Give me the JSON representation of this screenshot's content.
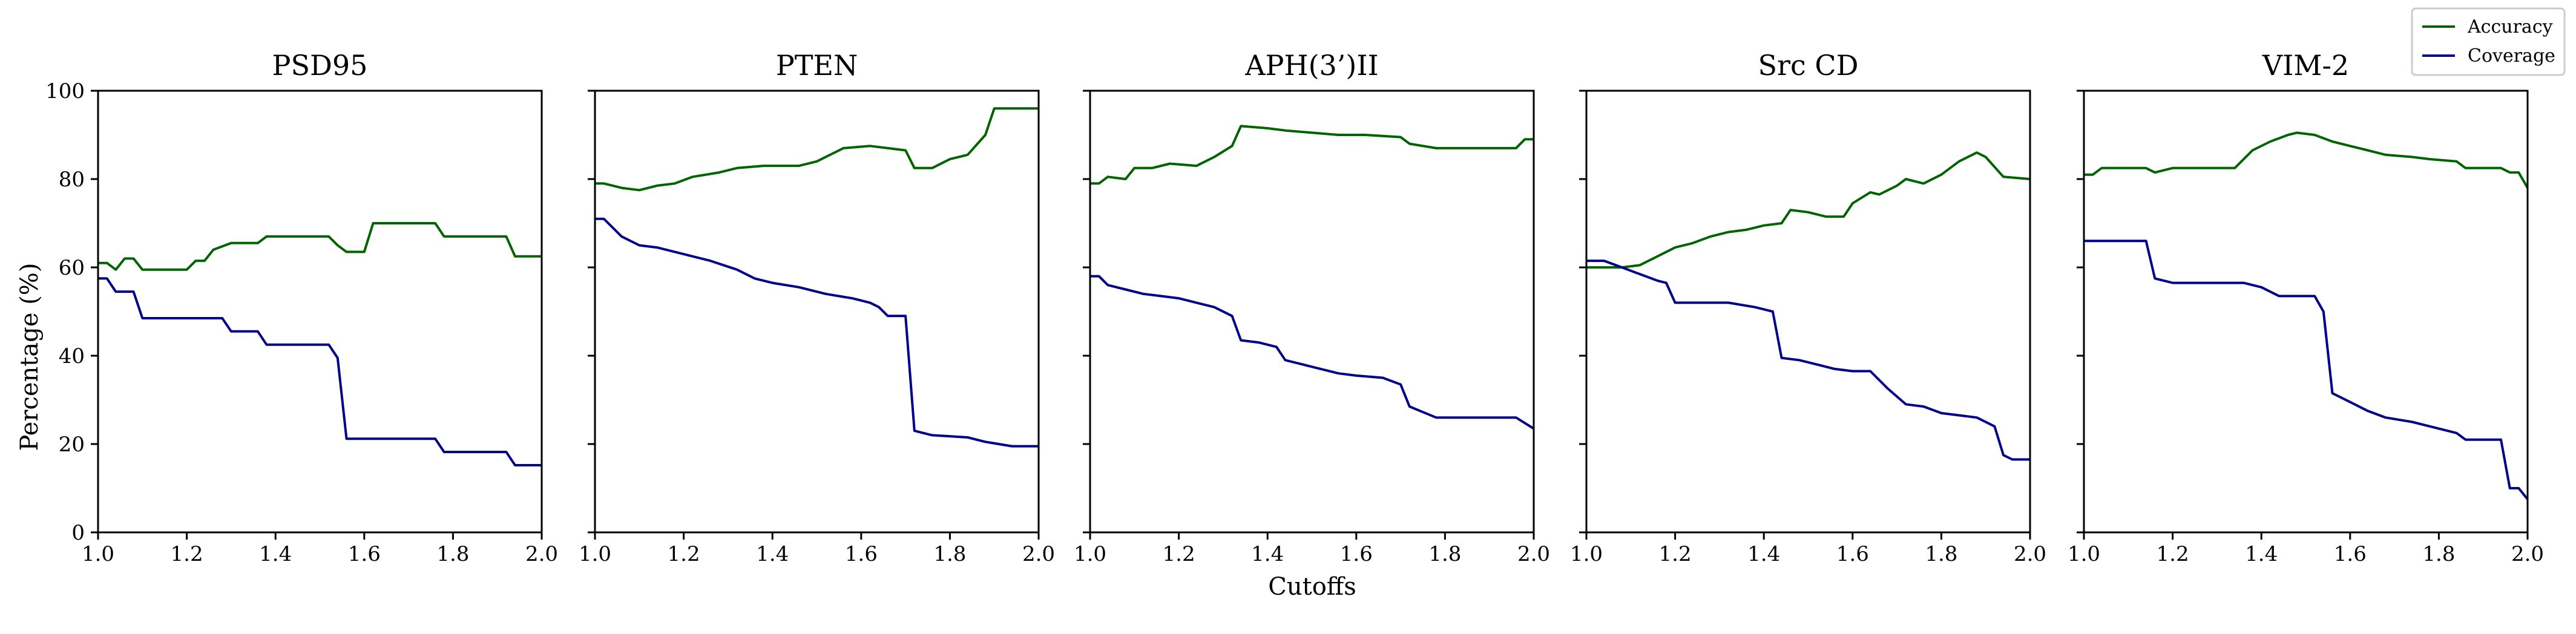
{
  "figure": {
    "ylabel": "Percentage (%)",
    "xlabel": "Cutoffs",
    "legend": {
      "placement": "top-right",
      "entries": [
        {
          "label": "Accuracy",
          "color": "#006400"
        },
        {
          "label": "Coverage",
          "color": "#00008b"
        }
      ]
    }
  },
  "chart_data": [
    {
      "type": "line",
      "title": "PSD95",
      "xlim": [
        1.0,
        2.0
      ],
      "ylim": [
        0,
        100
      ],
      "xticks": [
        "1.0",
        "1.2",
        "1.4",
        "1.6",
        "1.8",
        "2.0"
      ],
      "yticks": [
        "0",
        "20",
        "40",
        "60",
        "80",
        "100"
      ],
      "grid": false,
      "series": [
        {
          "name": "Accuracy",
          "color": "#006400",
          "x": [
            1.0,
            1.02,
            1.04,
            1.06,
            1.08,
            1.1,
            1.2,
            1.22,
            1.24,
            1.26,
            1.3,
            1.36,
            1.38,
            1.52,
            1.54,
            1.56,
            1.6,
            1.62,
            1.76,
            1.78,
            1.92,
            1.94,
            2.0
          ],
          "y": [
            61,
            61,
            59.5,
            62,
            62,
            59.5,
            59.5,
            61.5,
            61.5,
            64,
            65.5,
            65.5,
            67,
            67,
            65,
            63.5,
            63.5,
            70,
            70,
            67,
            67,
            62.5,
            62.5
          ]
        },
        {
          "name": "Coverage",
          "color": "#00008b",
          "x": [
            1.0,
            1.02,
            1.04,
            1.08,
            1.1,
            1.28,
            1.3,
            1.36,
            1.38,
            1.52,
            1.54,
            1.56,
            1.76,
            1.78,
            1.92,
            1.94,
            2.0
          ],
          "y": [
            57.5,
            57.5,
            54.5,
            54.5,
            48.5,
            48.5,
            45.5,
            45.5,
            42.5,
            42.5,
            39.5,
            21.2,
            21.2,
            18.2,
            18.2,
            15.2,
            15.2
          ]
        }
      ]
    },
    {
      "type": "line",
      "title": "PTEN",
      "xlim": [
        1.0,
        2.0
      ],
      "ylim": [
        0,
        100
      ],
      "xticks": [
        "1.0",
        "1.2",
        "1.4",
        "1.6",
        "1.8",
        "2.0"
      ],
      "yticks": [],
      "grid": false,
      "series": [
        {
          "name": "Accuracy",
          "color": "#006400",
          "x": [
            1.0,
            1.02,
            1.06,
            1.1,
            1.14,
            1.18,
            1.22,
            1.28,
            1.32,
            1.38,
            1.46,
            1.5,
            1.56,
            1.62,
            1.66,
            1.7,
            1.72,
            1.76,
            1.8,
            1.84,
            1.88,
            1.9,
            1.94,
            2.0
          ],
          "y": [
            79,
            79,
            78,
            77.5,
            78.5,
            79,
            80.5,
            81.5,
            82.5,
            83,
            83,
            84,
            87,
            87.5,
            87,
            86.5,
            82.5,
            82.5,
            84.5,
            85.5,
            90,
            96,
            96,
            96
          ]
        },
        {
          "name": "Coverage",
          "color": "#00008b",
          "x": [
            1.0,
            1.02,
            1.06,
            1.1,
            1.14,
            1.2,
            1.26,
            1.32,
            1.36,
            1.4,
            1.46,
            1.52,
            1.58,
            1.62,
            1.64,
            1.66,
            1.7,
            1.72,
            1.76,
            1.84,
            1.88,
            1.94,
            2.0
          ],
          "y": [
            71,
            71,
            67,
            65,
            64.5,
            63,
            61.5,
            59.5,
            57.5,
            56.5,
            55.5,
            54,
            53,
            52,
            51,
            49,
            49,
            23,
            22,
            21.5,
            20.5,
            19.5,
            19.5
          ]
        }
      ]
    },
    {
      "type": "line",
      "title": "APH(3’)II",
      "xlim": [
        1.0,
        2.0
      ],
      "ylim": [
        0,
        100
      ],
      "xticks": [
        "1.0",
        "1.2",
        "1.4",
        "1.6",
        "1.8",
        "2.0"
      ],
      "yticks": [],
      "grid": false,
      "series": [
        {
          "name": "Accuracy",
          "color": "#006400",
          "x": [
            1.0,
            1.02,
            1.04,
            1.08,
            1.1,
            1.14,
            1.18,
            1.24,
            1.28,
            1.32,
            1.34,
            1.4,
            1.44,
            1.5,
            1.56,
            1.62,
            1.7,
            1.72,
            1.78,
            1.84,
            1.96,
            1.98,
            2.0
          ],
          "y": [
            79,
            79,
            80.5,
            80,
            82.5,
            82.5,
            83.5,
            83,
            85,
            87.5,
            92,
            91.5,
            91,
            90.5,
            90,
            90,
            89.5,
            88,
            87,
            87,
            87,
            89,
            89
          ]
        },
        {
          "name": "Coverage",
          "color": "#00008b",
          "x": [
            1.0,
            1.02,
            1.04,
            1.08,
            1.12,
            1.16,
            1.2,
            1.24,
            1.28,
            1.32,
            1.34,
            1.38,
            1.42,
            1.44,
            1.48,
            1.52,
            1.56,
            1.6,
            1.66,
            1.7,
            1.72,
            1.78,
            1.96,
            2.0
          ],
          "y": [
            58,
            58,
            56,
            55,
            54,
            53.5,
            53,
            52,
            51,
            49,
            43.5,
            43,
            42,
            39,
            38,
            37,
            36,
            35.5,
            35,
            33.5,
            28.5,
            26,
            26,
            23.5
          ]
        }
      ]
    },
    {
      "type": "line",
      "title": "Src CD",
      "xlim": [
        1.0,
        2.0
      ],
      "ylim": [
        0,
        100
      ],
      "xticks": [
        "1.0",
        "1.2",
        "1.4",
        "1.6",
        "1.8",
        "2.0"
      ],
      "yticks": [],
      "grid": false,
      "series": [
        {
          "name": "Accuracy",
          "color": "#006400",
          "x": [
            1.0,
            1.04,
            1.08,
            1.12,
            1.16,
            1.2,
            1.24,
            1.28,
            1.32,
            1.36,
            1.4,
            1.44,
            1.46,
            1.5,
            1.54,
            1.58,
            1.6,
            1.64,
            1.66,
            1.7,
            1.72,
            1.76,
            1.8,
            1.84,
            1.88,
            1.9,
            1.94,
            2.0
          ],
          "y": [
            60,
            60,
            60,
            60.5,
            62.5,
            64.5,
            65.5,
            67,
            68,
            68.5,
            69.5,
            70,
            73,
            72.5,
            71.5,
            71.5,
            74.5,
            77,
            76.5,
            78.5,
            80,
            79,
            81,
            84,
            86,
            85,
            80.5,
            80
          ]
        },
        {
          "name": "Coverage",
          "color": "#00008b",
          "x": [
            1.0,
            1.04,
            1.08,
            1.12,
            1.16,
            1.18,
            1.2,
            1.32,
            1.38,
            1.42,
            1.44,
            1.48,
            1.52,
            1.56,
            1.6,
            1.64,
            1.68,
            1.72,
            1.76,
            1.8,
            1.84,
            1.88,
            1.92,
            1.94,
            1.96,
            2.0
          ],
          "y": [
            61.5,
            61.5,
            60,
            58.5,
            57,
            56.5,
            52,
            52,
            51,
            50,
            39.5,
            39,
            38,
            37,
            36.5,
            36.5,
            32.5,
            29,
            28.5,
            27,
            26.5,
            26,
            24,
            17.5,
            16.5,
            16.5
          ]
        }
      ]
    },
    {
      "type": "line",
      "title": "VIM-2",
      "xlim": [
        1.0,
        2.0
      ],
      "ylim": [
        0,
        100
      ],
      "xticks": [
        "1.0",
        "1.2",
        "1.4",
        "1.6",
        "1.8",
        "2.0"
      ],
      "yticks": [],
      "grid": false,
      "series": [
        {
          "name": "Accuracy",
          "color": "#006400",
          "x": [
            1.0,
            1.02,
            1.04,
            1.14,
            1.16,
            1.2,
            1.24,
            1.34,
            1.38,
            1.42,
            1.46,
            1.48,
            1.52,
            1.56,
            1.6,
            1.64,
            1.68,
            1.74,
            1.78,
            1.84,
            1.86,
            1.94,
            1.96,
            1.98,
            2.0
          ],
          "y": [
            81,
            81,
            82.5,
            82.5,
            81.5,
            82.5,
            82.5,
            82.5,
            86.5,
            88.5,
            90,
            90.5,
            90,
            88.5,
            87.5,
            86.5,
            85.5,
            85,
            84.5,
            84,
            82.5,
            82.5,
            81.5,
            81.5,
            78
          ]
        },
        {
          "name": "Coverage",
          "color": "#00008b",
          "x": [
            1.0,
            1.14,
            1.16,
            1.2,
            1.36,
            1.4,
            1.44,
            1.52,
            1.54,
            1.56,
            1.6,
            1.64,
            1.68,
            1.74,
            1.78,
            1.84,
            1.86,
            1.94,
            1.96,
            1.98,
            2.0
          ],
          "y": [
            66,
            66,
            57.5,
            56.5,
            56.5,
            55.5,
            53.5,
            53.5,
            50,
            31.5,
            29.5,
            27.5,
            26,
            25,
            24,
            22.5,
            21,
            21,
            10,
            10,
            7.5
          ]
        }
      ]
    }
  ]
}
